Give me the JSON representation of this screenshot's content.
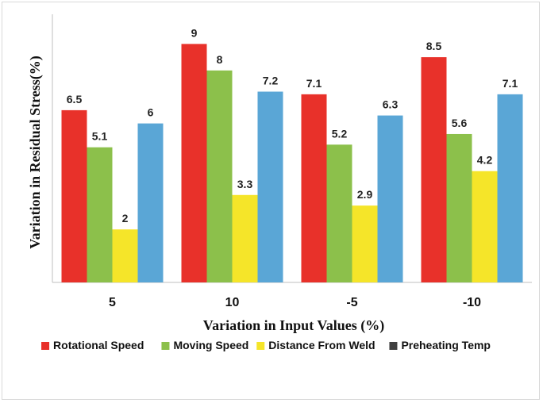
{
  "chart_data": {
    "type": "bar",
    "categories": [
      "5",
      "10",
      "-5",
      "-10"
    ],
    "series": [
      {
        "name": "Rotational Speed",
        "color": "#e8312a",
        "values": [
          6.5,
          9,
          7.1,
          8.5
        ]
      },
      {
        "name": "Moving Speed",
        "color": "#8cc04b",
        "values": [
          5.1,
          8,
          5.2,
          5.6
        ]
      },
      {
        "name": "Distance From Weld",
        "color": "#f5e529",
        "values": [
          2,
          3.3,
          2.9,
          4.2
        ]
      },
      {
        "name": "Preheating Temp",
        "color": "#404040",
        "values": [
          null,
          null,
          null,
          null
        ]
      },
      {
        "name": "",
        "color": "#5aa6d6",
        "values": [
          6,
          7.2,
          6.3,
          7.1
        ]
      }
    ],
    "value_labels": [
      [
        "6.5",
        "9",
        "7.1",
        "8.5"
      ],
      [
        "5.1",
        "8",
        "5.2",
        "5.6"
      ],
      [
        "2",
        "3.3",
        "2.9",
        "4.2"
      ],
      [
        "",
        "",
        "",
        ""
      ],
      [
        "6",
        "7.2",
        "6.3",
        "7.1"
      ]
    ],
    "xlabel": "Variation in Input Values (%)",
    "ylabel": "Variation in Residual Stress(%)",
    "ylim": [
      0,
      10
    ],
    "grid": false,
    "legend": "bottom"
  }
}
